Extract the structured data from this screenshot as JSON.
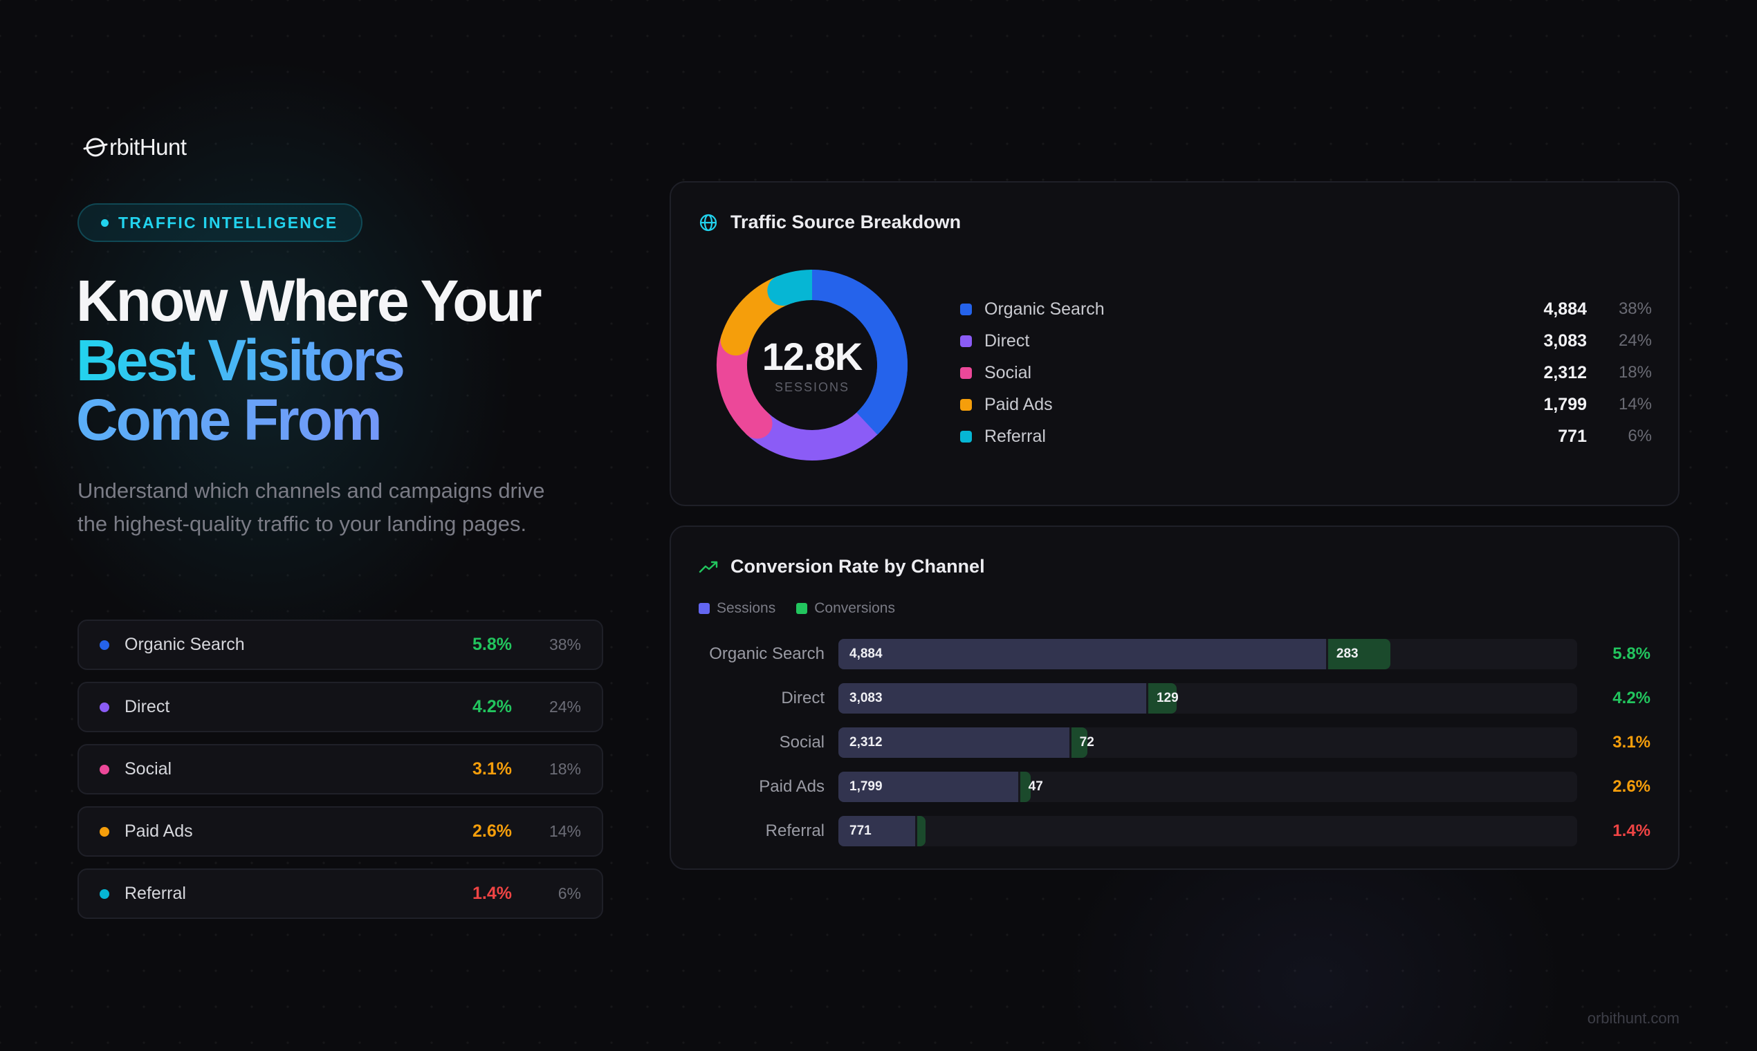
{
  "brand": {
    "name": "rbitHunt",
    "url": "orbithunt.com"
  },
  "hero": {
    "tag": "TRAFFIC INTELLIGENCE",
    "headline_line1": "Know Where Your",
    "headline_line2": "Best Visitors",
    "headline_line3": "Come From",
    "subtext": "Understand which channels and campaigns drive the highest-quality traffic to your landing pages."
  },
  "colors": {
    "organic": "#2563eb",
    "direct": "#8b5cf6",
    "social": "#ec4899",
    "paid": "#f59e0b",
    "referral": "#06b6d4",
    "rate_good": "#22c55e",
    "rate_mid": "#f59e0b",
    "rate_bad": "#ef4444",
    "sessions": "#6366f1",
    "conversions": "#22c55e"
  },
  "channels": [
    {
      "name": "Organic Search",
      "color": "#2563eb",
      "rate": "5.8%",
      "rate_color": "#22c55e",
      "share": "38%"
    },
    {
      "name": "Direct",
      "color": "#8b5cf6",
      "rate": "4.2%",
      "rate_color": "#22c55e",
      "share": "24%"
    },
    {
      "name": "Social",
      "color": "#ec4899",
      "rate": "3.1%",
      "rate_color": "#f59e0b",
      "share": "18%"
    },
    {
      "name": "Paid Ads",
      "color": "#f59e0b",
      "rate": "2.6%",
      "rate_color": "#f59e0b",
      "share": "14%"
    },
    {
      "name": "Referral",
      "color": "#06b6d4",
      "rate": "1.4%",
      "rate_color": "#ef4444",
      "share": "6%"
    }
  ],
  "traffic_card": {
    "title": "Traffic Source Breakdown",
    "icon": "globe-icon",
    "total": "12.8K",
    "total_label": "SESSIONS",
    "legend": [
      {
        "name": "Organic Search",
        "value": "4,884",
        "pct": "38%"
      },
      {
        "name": "Direct",
        "value": "3,083",
        "pct": "24%"
      },
      {
        "name": "Social",
        "value": "2,312",
        "pct": "18%"
      },
      {
        "name": "Paid Ads",
        "value": "1,799",
        "pct": "14%"
      },
      {
        "name": "Referral",
        "value": "771",
        "pct": "6%"
      }
    ]
  },
  "conversion_card": {
    "title": "Conversion Rate by Channel",
    "icon": "trending-up-icon",
    "legend_sessions": "Sessions",
    "legend_conversions": "Conversions",
    "rows": [
      {
        "name": "Organic Search",
        "sessions": 4884,
        "sessions_label": "4,884",
        "conversions": 283,
        "conversions_label": "283",
        "rate": "5.8%"
      },
      {
        "name": "Direct",
        "sessions": 3083,
        "sessions_label": "3,083",
        "conversions": 129,
        "conversions_label": "129",
        "rate": "4.2%"
      },
      {
        "name": "Social",
        "sessions": 2312,
        "sessions_label": "2,312",
        "conversions": 72,
        "conversions_label": "72",
        "rate": "3.1%"
      },
      {
        "name": "Paid Ads",
        "sessions": 1799,
        "sessions_label": "1,799",
        "conversions": 47,
        "conversions_label": "47",
        "rate": "2.6%"
      },
      {
        "name": "Referral",
        "sessions": 771,
        "sessions_label": "771",
        "conversions": 11,
        "conversions_label": "",
        "rate": "1.4%"
      }
    ]
  },
  "chart_data": [
    {
      "type": "pie",
      "title": "Traffic Source Breakdown",
      "categories": [
        "Organic Search",
        "Direct",
        "Social",
        "Paid Ads",
        "Referral"
      ],
      "values": [
        4884,
        3083,
        2312,
        1799,
        771
      ],
      "center_label": "12.8K SESSIONS"
    },
    {
      "type": "bar",
      "title": "Conversion Rate by Channel",
      "categories": [
        "Organic Search",
        "Direct",
        "Social",
        "Paid Ads",
        "Referral"
      ],
      "series": [
        {
          "name": "Sessions",
          "values": [
            4884,
            3083,
            2312,
            1799,
            771
          ]
        },
        {
          "name": "Conversions",
          "values": [
            283,
            129,
            72,
            47,
            11
          ]
        }
      ],
      "rates": [
        "5.8%",
        "4.2%",
        "3.1%",
        "2.6%",
        "1.4%"
      ]
    }
  ]
}
